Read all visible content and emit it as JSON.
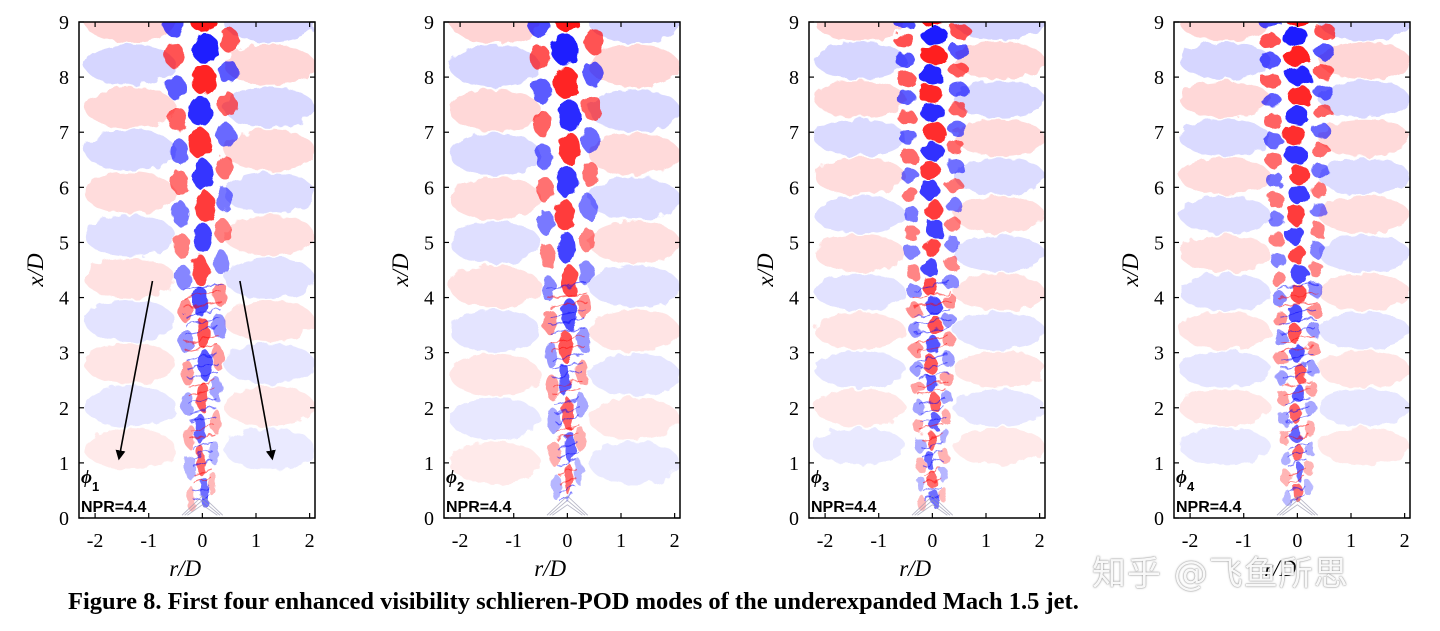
{
  "chart_data": [
    {
      "type": "heatmap",
      "panel_id": "p1",
      "mode_symbol": "ϕ",
      "mode_index": "1",
      "condition_label": "NPR=4.4",
      "xlabel": "r/D",
      "ylabel": "x/D",
      "xlim": [
        -2.3,
        2.1
      ],
      "ylim": [
        0,
        9
      ],
      "xticks": [
        -2,
        -1,
        0,
        1,
        2
      ],
      "yticks": [
        0,
        1,
        2,
        3,
        4,
        5,
        6,
        7,
        8,
        9
      ],
      "colorscale": [
        "#0000ff",
        "#ffffff",
        "#ff0000"
      ],
      "core_wavelength": 1.15,
      "halo_wavelength": 1.55,
      "annotation": "two diverging arrows from r/D ≈ ±0.9, x/D ≈ 4.3 toward r/D ≈ ±1.4, x/D ≈ 1.1"
    },
    {
      "type": "heatmap",
      "panel_id": "p2",
      "mode_symbol": "ϕ",
      "mode_index": "2",
      "condition_label": "NPR=4.4",
      "xlabel": "r/D",
      "ylabel": "x/D",
      "xlim": [
        -2.3,
        2.1
      ],
      "ylim": [
        0,
        9
      ],
      "xticks": [
        -2,
        -1,
        0,
        1,
        2
      ],
      "yticks": [
        0,
        1,
        2,
        3,
        4,
        5,
        6,
        7,
        8,
        9
      ],
      "colorscale": [
        "#0000ff",
        "#ffffff",
        "#ff0000"
      ],
      "core_wavelength": 1.2,
      "halo_wavelength": 1.6
    },
    {
      "type": "heatmap",
      "panel_id": "p3",
      "mode_symbol": "ϕ",
      "mode_index": "3",
      "condition_label": "NPR=4.4",
      "xlabel": "r/D",
      "ylabel": "x/D",
      "xlim": [
        -2.3,
        2.1
      ],
      "ylim": [
        0,
        9
      ],
      "xticks": [
        -2,
        -1,
        0,
        1,
        2
      ],
      "yticks": [
        0,
        1,
        2,
        3,
        4,
        5,
        6,
        7,
        8,
        9
      ],
      "colorscale": [
        "#0000ff",
        "#ffffff",
        "#ff0000"
      ],
      "core_wavelength": 0.7,
      "halo_wavelength": 1.4
    },
    {
      "type": "heatmap",
      "panel_id": "p4",
      "mode_symbol": "ϕ",
      "mode_index": "4",
      "condition_label": "NPR=4.4",
      "xlabel": "r/D",
      "ylabel": "x/D",
      "xlim": [
        -2.3,
        2.1
      ],
      "ylim": [
        0,
        9
      ],
      "xticks": [
        -2,
        -1,
        0,
        1,
        2
      ],
      "yticks": [
        0,
        1,
        2,
        3,
        4,
        5,
        6,
        7,
        8,
        9
      ],
      "colorscale": [
        "#0000ff",
        "#ffffff",
        "#ff0000"
      ],
      "core_wavelength": 0.72,
      "halo_wavelength": 1.4
    }
  ],
  "caption": "Figure 8. First four enhanced visibility schlieren-POD modes of the underexpanded Mach 1.5 jet.",
  "watermark": "知乎 @飞鱼所思"
}
